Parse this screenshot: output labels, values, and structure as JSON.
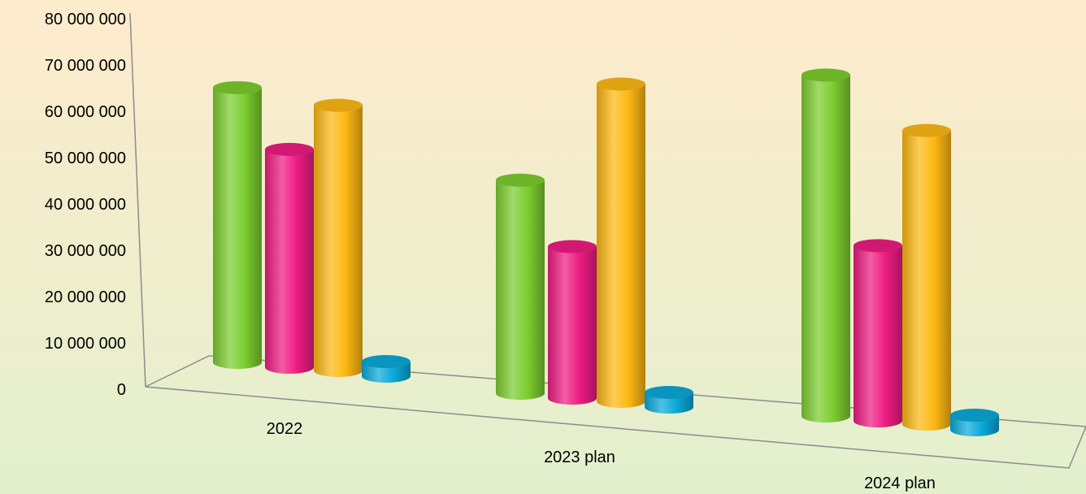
{
  "chart_data": {
    "type": "bar",
    "style": "3d-cylinder",
    "categories": [
      "2022",
      "2023 plan",
      "2024 plan"
    ],
    "series": [
      {
        "color": "#7ccd2f",
        "values": [
          58000000,
          45000000,
          72000000
        ]
      },
      {
        "color": "#ee1c83",
        "values": [
          46000000,
          32000000,
          37000000
        ]
      },
      {
        "color": "#fdb813",
        "values": [
          56000000,
          67000000,
          62000000
        ]
      },
      {
        "color": "#0aa9d9",
        "values": [
          2000000,
          2000000,
          3000000
        ]
      }
    ],
    "ylim": [
      0,
      80000000
    ],
    "yticks": [
      "80 000 000",
      "70 000 000",
      "60 000 000",
      "50 000 000",
      "40 000 000",
      "30 000 000",
      "20 000 000",
      "10 000 000",
      "0"
    ],
    "grid": false,
    "legend": "none"
  },
  "colors": {
    "background_top": "#fdebcc",
    "background_bottom": "#e3f0cd",
    "axis": "#8c8c8c"
  }
}
